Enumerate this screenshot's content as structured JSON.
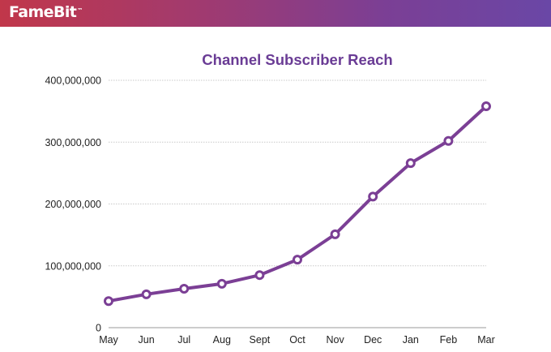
{
  "header": {
    "logo_text": "FameBit",
    "logo_mark": "™",
    "background_colors": [
      "#c1374a",
      "#7b3f95",
      "#6a47a6"
    ]
  },
  "chart_data": {
    "type": "line",
    "title": "Channel Subscriber Reach",
    "xlabel": "",
    "ylabel": "",
    "categories": [
      "May",
      "Jun",
      "Jul",
      "Aug",
      "Sept",
      "Oct",
      "Nov",
      "Dec",
      "Jan",
      "Feb",
      "Mar"
    ],
    "series": [
      {
        "name": "Channel Subscriber Reach",
        "values": [
          43000000,
          54000000,
          63000000,
          71000000,
          85000000,
          110000000,
          151000000,
          212000000,
          266000000,
          302000000,
          358000000
        ],
        "color": "#7b3f95"
      }
    ],
    "ylim": [
      0,
      400000000
    ],
    "yticks": [
      0,
      100000000,
      200000000,
      300000000,
      400000000
    ],
    "ytick_labels": [
      "0",
      "100,000,000",
      "200,000,000",
      "300,000,000",
      "400,000,000"
    ],
    "grid": true,
    "legend": "none"
  }
}
